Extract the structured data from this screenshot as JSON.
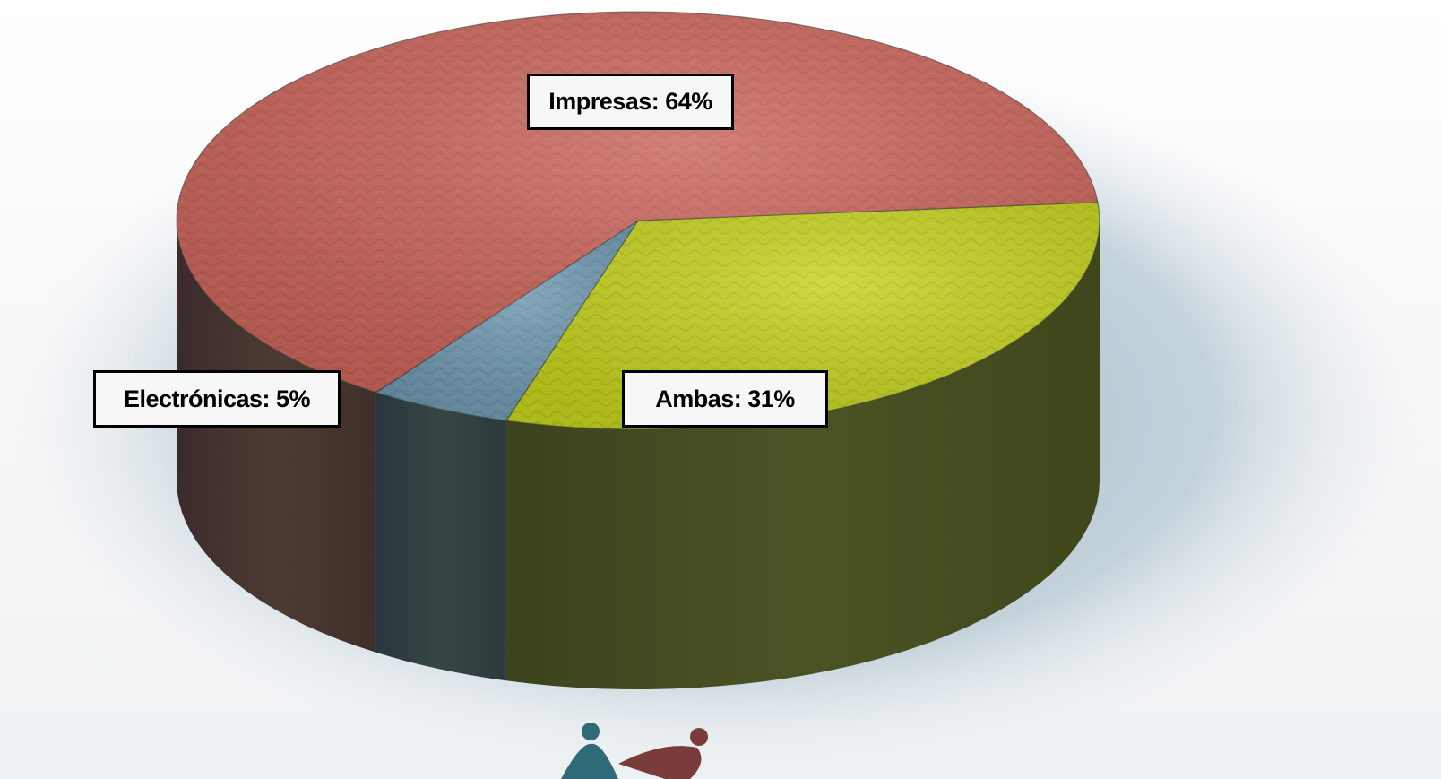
{
  "chart_data": {
    "type": "pie",
    "slices": [
      {
        "label": "Impresas",
        "value": 64,
        "color": "#c9645a"
      },
      {
        "label": "Ambas",
        "value": 31,
        "color": "#c4d21c"
      },
      {
        "label": "Electrónicas",
        "value": 5,
        "color": "#6d97ae"
      }
    ],
    "data_labels": {
      "impresas": "Impresas: 64%",
      "electronicas": "Electrónicas: 5%",
      "ambas": "Ambas: 31%"
    },
    "style": "3d",
    "legend": "none"
  }
}
